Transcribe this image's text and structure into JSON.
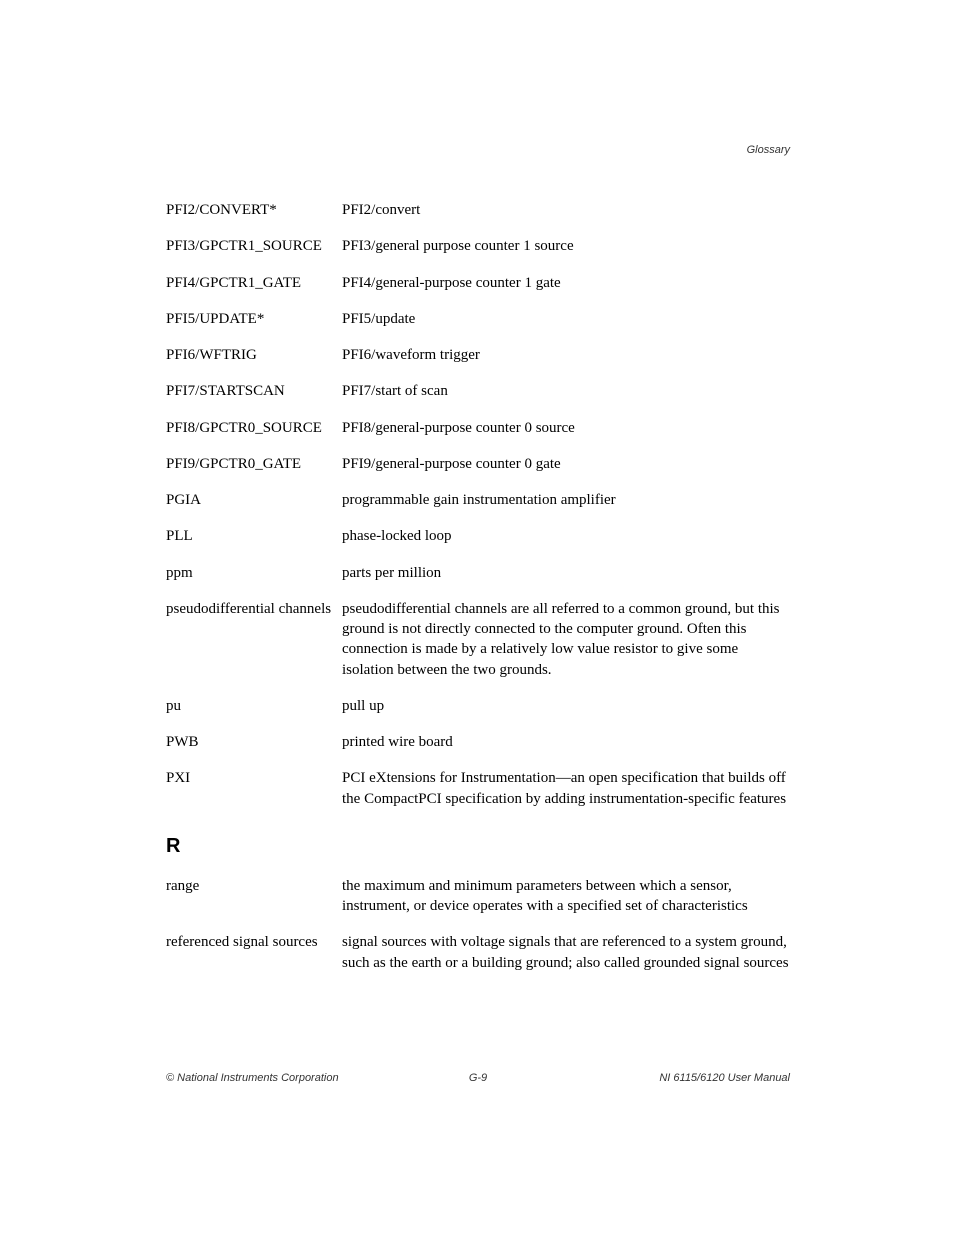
{
  "header": {
    "section": "Glossary"
  },
  "entries_p": [
    {
      "term": "PFI2/CONVERT*",
      "def": "PFI2/convert"
    },
    {
      "term": "PFI3/GPCTR1_SOURCE",
      "def": "PFI3/general purpose counter 1 source"
    },
    {
      "term": "PFI4/GPCTR1_GATE",
      "def": "PFI4/general-purpose counter 1 gate"
    },
    {
      "term": "PFI5/UPDATE*",
      "def": "PFI5/update"
    },
    {
      "term": "PFI6/WFTRIG",
      "def": "PFI6/waveform trigger"
    },
    {
      "term": "PFI7/STARTSCAN",
      "def": "PFI7/start of scan"
    },
    {
      "term": "PFI8/GPCTR0_SOURCE",
      "def": "PFI8/general-purpose counter 0 source"
    },
    {
      "term": "PFI9/GPCTR0_GATE",
      "def": "PFI9/general-purpose counter 0 gate"
    },
    {
      "term": "PGIA",
      "def": "programmable gain instrumentation amplifier"
    },
    {
      "term": "PLL",
      "def": "phase-locked loop"
    },
    {
      "term": "ppm",
      "def": "parts per million"
    },
    {
      "term": "pseudodifferential channels",
      "def": "pseudodifferential channels are all referred to a common ground, but this ground is not directly connected to the computer ground. Often this connection is made by a relatively low value resistor to give some isolation between the two grounds."
    },
    {
      "term": "pu",
      "def": "pull up"
    },
    {
      "term": "PWB",
      "def": "printed wire board"
    },
    {
      "term": "PXI",
      "def": "PCI eXtensions for Instrumentation—an open specification that builds off the CompactPCI specification by adding instrumentation-specific features"
    }
  ],
  "section_r_letter": "R",
  "entries_r": [
    {
      "term": "range",
      "def": "the maximum and minimum parameters between which a sensor, instrument, or device operates with a specified set of characteristics"
    },
    {
      "term": "referenced signal sources",
      "def": "signal sources with voltage signals that are referenced to a system ground, such as the earth or a building ground; also called grounded signal sources"
    }
  ],
  "footer": {
    "left": "© National Instruments Corporation",
    "center": "G-9",
    "right": "NI 6115/6120 User Manual"
  }
}
